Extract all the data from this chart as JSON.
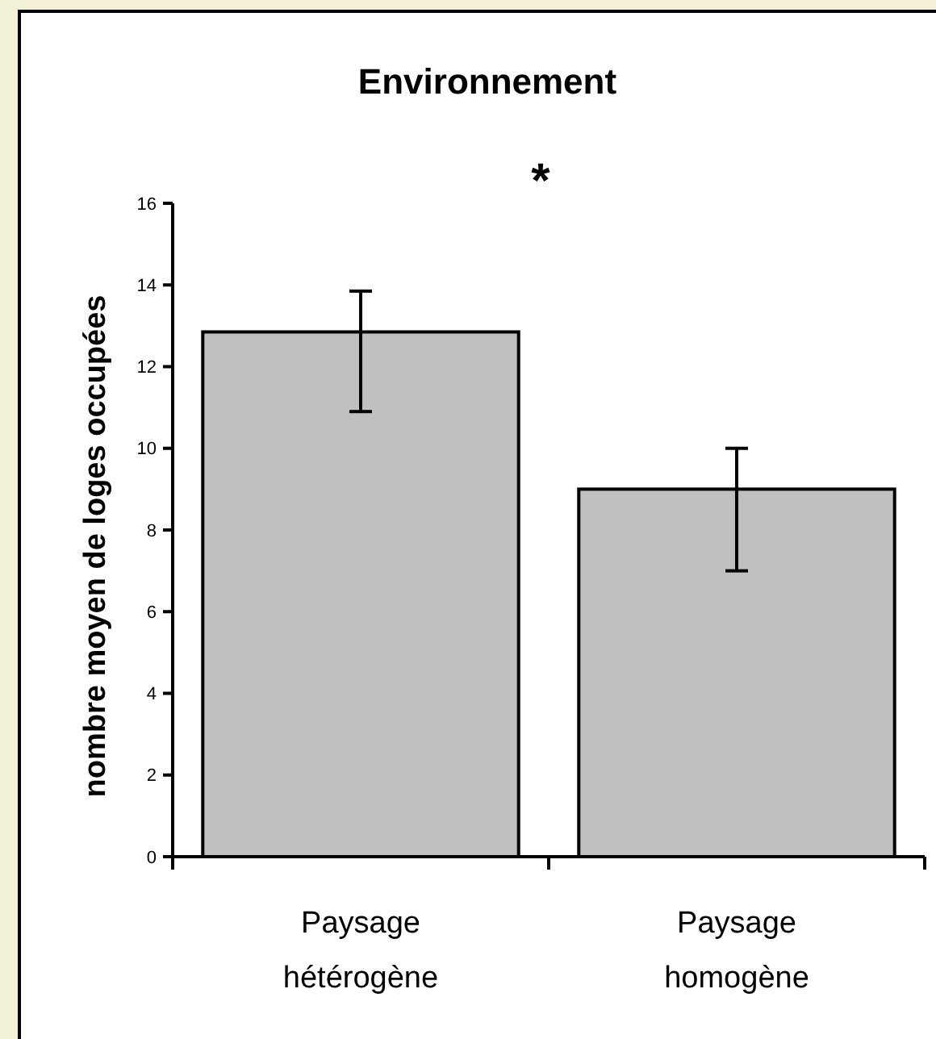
{
  "chart_data": {
    "type": "bar",
    "title": "Environnement",
    "ylabel": "nombre moyen de loges occupées",
    "categories": [
      "Paysage\nhétérogène",
      "Paysage\nhomogène"
    ],
    "values": [
      12.85,
      9.0
    ],
    "color": "#c0c0c0",
    "errors": [
      [
        10.9,
        13.85
      ],
      [
        7.0,
        10.0
      ]
    ],
    "ylim": [
      0,
      16
    ],
    "yticks": [
      0,
      2,
      4,
      6,
      8,
      10,
      12,
      14,
      16
    ],
    "grid": false,
    "annotations": [
      "*"
    ]
  }
}
